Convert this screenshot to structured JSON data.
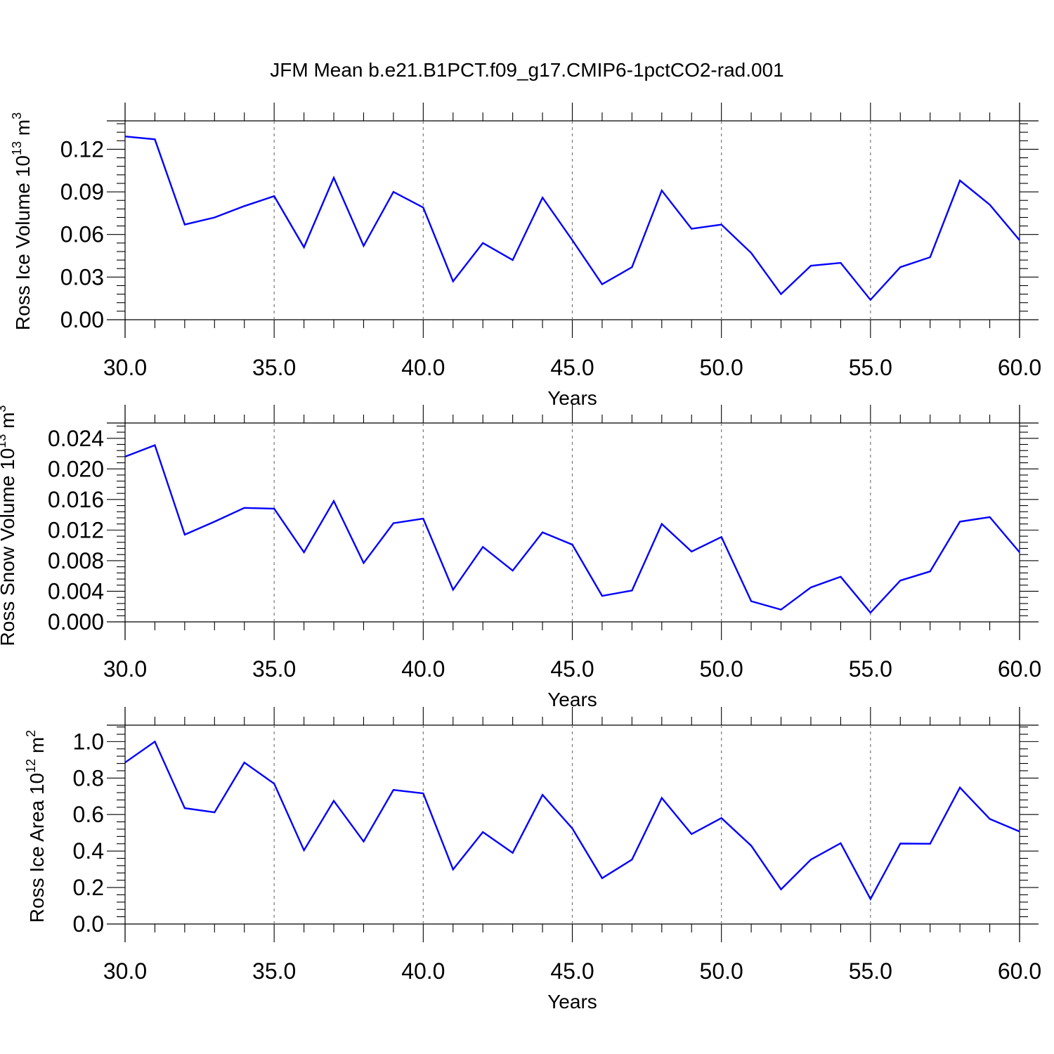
{
  "title": "JFM Mean b.e21.B1PCT.f09_g17.CMIP6-1pctCO2-rad.001",
  "colors": {
    "series": "#0000ff",
    "axis": "#000000",
    "grid": "#777777"
  },
  "chart_data": [
    {
      "type": "line",
      "name": "ice-volume",
      "ylabel": {
        "base": "Ross Ice Volume 10",
        "exponent": "13",
        "unit": " m",
        "unit_exp": "3"
      },
      "xlabel": "Years",
      "xlim": [
        30,
        60
      ],
      "ylim": [
        0,
        0.14
      ],
      "grid": "vertical dashed at 35, 40, 45, 50, 55",
      "x_ticks": [
        30,
        35,
        40,
        45,
        50,
        55,
        60
      ],
      "x_tick_labels": [
        "30.0",
        "35.0",
        "40.0",
        "45.0",
        "50.0",
        "55.0",
        "60.0"
      ],
      "y_ticks": [
        0,
        0.03,
        0.06,
        0.09,
        0.12
      ],
      "y_tick_labels": [
        "0.00",
        "0.03",
        "0.06",
        "0.09",
        "0.12"
      ],
      "x": [
        30,
        31,
        32,
        33,
        34,
        35,
        36,
        37,
        38,
        39,
        40,
        41,
        42,
        43,
        44,
        45,
        46,
        47,
        48,
        49,
        50,
        51,
        52,
        53,
        54,
        55,
        56,
        57,
        58,
        59,
        60
      ],
      "series": [
        {
          "name": "Ross Ice Volume",
          "values": [
            0.129,
            0.127,
            0.067,
            0.072,
            0.08,
            0.087,
            0.051,
            0.1,
            0.052,
            0.09,
            0.079,
            0.027,
            0.054,
            0.042,
            0.086,
            0.056,
            0.025,
            0.037,
            0.091,
            0.064,
            0.067,
            0.047,
            0.018,
            0.038,
            0.04,
            0.014,
            0.037,
            0.044,
            0.098,
            0.081,
            0.056
          ]
        }
      ]
    },
    {
      "type": "line",
      "name": "snow-volume",
      "ylabel": {
        "base": "Ross Snow Volume 10",
        "exponent": "13",
        "unit": " m",
        "unit_exp": "3"
      },
      "xlabel": "Years",
      "xlim": [
        30,
        60
      ],
      "ylim": [
        0,
        0.026
      ],
      "grid": "vertical dashed at 35, 40, 45, 50, 55",
      "x_ticks": [
        30,
        35,
        40,
        45,
        50,
        55,
        60
      ],
      "x_tick_labels": [
        "30.0",
        "35.0",
        "40.0",
        "45.0",
        "50.0",
        "55.0",
        "60.0"
      ],
      "y_ticks": [
        0,
        0.004,
        0.008,
        0.012,
        0.016,
        0.02,
        0.024
      ],
      "y_tick_labels": [
        "0.000",
        "0.004",
        "0.008",
        "0.012",
        "0.016",
        "0.020",
        "0.024"
      ],
      "x": [
        30,
        31,
        32,
        33,
        34,
        35,
        36,
        37,
        38,
        39,
        40,
        41,
        42,
        43,
        44,
        45,
        46,
        47,
        48,
        49,
        50,
        51,
        52,
        53,
        54,
        55,
        56,
        57,
        58,
        59,
        60
      ],
      "series": [
        {
          "name": "Ross Snow Volume",
          "values": [
            0.0216,
            0.0231,
            0.0114,
            0.0131,
            0.0149,
            0.0148,
            0.0091,
            0.0158,
            0.0077,
            0.0129,
            0.0135,
            0.0042,
            0.0098,
            0.0067,
            0.0117,
            0.0101,
            0.0034,
            0.0041,
            0.0128,
            0.0092,
            0.0111,
            0.0027,
            0.0016,
            0.0045,
            0.0059,
            0.0012,
            0.0054,
            0.0066,
            0.0131,
            0.0137,
            0.0091
          ]
        }
      ]
    },
    {
      "type": "line",
      "name": "ice-area",
      "ylabel": {
        "base": "Ross Ice Area 10",
        "exponent": "12",
        "unit": " m",
        "unit_exp": "2"
      },
      "xlabel": "Years",
      "xlim": [
        30,
        60
      ],
      "ylim": [
        0,
        1.09
      ],
      "grid": "vertical dashed at 35, 40, 45, 50, 55",
      "x_ticks": [
        30,
        35,
        40,
        45,
        50,
        55,
        60
      ],
      "x_tick_labels": [
        "30.0",
        "35.0",
        "40.0",
        "45.0",
        "50.0",
        "55.0",
        "60.0"
      ],
      "y_ticks": [
        0,
        0.2,
        0.4,
        0.6,
        0.8,
        1.0
      ],
      "y_tick_labels": [
        "0.0",
        "0.2",
        "0.4",
        "0.6",
        "0.8",
        "1.0"
      ],
      "x": [
        30,
        31,
        32,
        33,
        34,
        35,
        36,
        37,
        38,
        39,
        40,
        41,
        42,
        43,
        44,
        45,
        46,
        47,
        48,
        49,
        50,
        51,
        52,
        53,
        54,
        55,
        56,
        57,
        58,
        59,
        60
      ],
      "series": [
        {
          "name": "Ross Ice Area",
          "values": [
            0.885,
            1.0,
            0.635,
            0.612,
            0.885,
            0.769,
            0.404,
            0.675,
            0.452,
            0.735,
            0.716,
            0.299,
            0.504,
            0.39,
            0.708,
            0.524,
            0.251,
            0.353,
            0.691,
            0.493,
            0.581,
            0.429,
            0.19,
            0.353,
            0.443,
            0.137,
            0.441,
            0.44,
            0.748,
            0.576,
            0.507
          ]
        }
      ]
    }
  ]
}
